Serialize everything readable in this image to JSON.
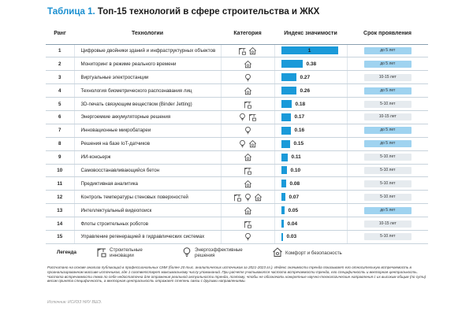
{
  "title": {
    "number": "Таблица 1.",
    "text": "Топ-15 технологий в сфере строительства и ЖКХ"
  },
  "columns": {
    "rank": "Ранг",
    "tech": "Технологии",
    "cat": "Категория",
    "idx": "Индекс значимости",
    "term": "Срок проявления"
  },
  "colors": {
    "accent": "#1a9ad9",
    "badge_short": "#9fd3f0",
    "badge_long": "#e6ebef"
  },
  "rows": [
    {
      "rank": "1",
      "tech": "Цифровые двойники зданий и инфраструктурных объектов",
      "cats": [
        "crane",
        "house"
      ],
      "index": 1,
      "index_label": "1",
      "term": "до 5 лет",
      "term_kind": "blue"
    },
    {
      "rank": "2",
      "tech": "Мониторинг в режиме реального времени",
      "cats": [
        "house"
      ],
      "index": 0.38,
      "index_label": "0.38",
      "term": "до 5 лет",
      "term_kind": "blue"
    },
    {
      "rank": "3",
      "tech": "Виртуальные электростанции",
      "cats": [
        "bulb"
      ],
      "index": 0.27,
      "index_label": "0.27",
      "term": "10-15 лет",
      "term_kind": "gray"
    },
    {
      "rank": "4",
      "tech": "Технология биометрического распознавания лиц",
      "cats": [
        "house"
      ],
      "index": 0.26,
      "index_label": "0.26",
      "term": "до 5 лет",
      "term_kind": "blue"
    },
    {
      "rank": "5",
      "tech": "3D-печать связующим веществом (Binder Jetting)",
      "cats": [
        "crane"
      ],
      "index": 0.18,
      "index_label": "0.18",
      "term": "5-10 лет",
      "term_kind": "gray"
    },
    {
      "rank": "6",
      "tech": "Энергоемкие аккумуляторные решения",
      "cats": [
        "bulb",
        "crane"
      ],
      "index": 0.17,
      "index_label": "0.17",
      "term": "10-15 лет",
      "term_kind": "gray"
    },
    {
      "rank": "7",
      "tech": "Инновационные микробатареи",
      "cats": [
        "bulb"
      ],
      "index": 0.16,
      "index_label": "0.16",
      "term": "до 5 лет",
      "term_kind": "blue"
    },
    {
      "rank": "8",
      "tech": "Решения на базе IoT-датчиков",
      "cats": [
        "bulb",
        "house"
      ],
      "index": 0.15,
      "index_label": "0.15",
      "term": "до 5 лет",
      "term_kind": "blue"
    },
    {
      "rank": "9",
      "tech": "ИИ-консьерж",
      "cats": [
        "house"
      ],
      "index": 0.11,
      "index_label": "0.11",
      "term": "5-10 лет",
      "term_kind": "gray"
    },
    {
      "rank": "10",
      "tech": "Самовосстанавливающийся бетон",
      "cats": [
        "crane"
      ],
      "index": 0.1,
      "index_label": "0.10",
      "term": "5-10 лет",
      "term_kind": "gray"
    },
    {
      "rank": "11",
      "tech": "Предиктивная аналитика",
      "cats": [
        "house"
      ],
      "index": 0.08,
      "index_label": "0.08",
      "term": "5-10 лет",
      "term_kind": "gray"
    },
    {
      "rank": "12",
      "tech": "Контроль температуры стеновых поверхностей",
      "cats": [
        "crane",
        "bulb",
        "house"
      ],
      "index": 0.07,
      "index_label": "0.07",
      "term": "5-10 лет",
      "term_kind": "gray"
    },
    {
      "rank": "13",
      "tech": "Интеллектуальный видеопоиск",
      "cats": [
        "house"
      ],
      "index": 0.05,
      "index_label": "0.05",
      "term": "до 5 лет",
      "term_kind": "blue"
    },
    {
      "rank": "14",
      "tech": "Флоты строительных роботов",
      "cats": [
        "crane"
      ],
      "index": 0.04,
      "index_label": "0.04",
      "term": "10-15 лет",
      "term_kind": "gray"
    },
    {
      "rank": "15",
      "tech": "Управление регенерацией в гидравлических системах",
      "cats": [
        "bulb"
      ],
      "index": 0.03,
      "index_label": "0.03",
      "term": "5-10 лет",
      "term_kind": "gray"
    }
  ],
  "legend": {
    "title": "Легенда",
    "crane": "Строительные инновации",
    "bulb": "Энергоэффективные решения",
    "house": "Комфорт и безопасность"
  },
  "note": "Рассчитано на основе анализа публикаций в профессиональных СМИ (более 20 тыс. аналитических источников за 2021-2023 гг.). Индекс значимости тренда показывает его относительную встречаемость в проанализированном массиве источников, где 1 соответствует максимальному числу упоминаний. При расчете учитываются частота встречаемости тренда, его специфичность и векторная центральность. Частота встречаемости тема по себе недостаточна для отражения реальной актуальности тренда, поэтому, чтобы не обозначать конкретные научно-технологические направления с их высоким общим (по сути) весом принята специфичность, а векторная центральность отражает степень связи с другими направлениями.",
  "source": "Источник: ИСИЭЗ НИУ ВШЭ."
}
